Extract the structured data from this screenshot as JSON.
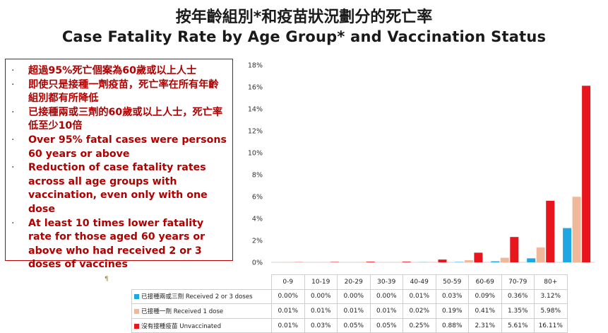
{
  "title_zh": "按年齡組別*和疫苗狀況劃分的死亡率",
  "title_en": "Case Fatality Rate by Age Group* and Vaccination Status",
  "bullets": [
    {
      "lang": "zh",
      "text": "超過95%死亡個案為60歲或以上人士"
    },
    {
      "lang": "zh",
      "text": "即使只是接種一劑疫苗，死亡率在所有年齡組別都有所降低"
    },
    {
      "lang": "zh",
      "text": "已接種兩或三劑的60歲或以上人士，死亡率低至少10倍"
    },
    {
      "lang": "en",
      "text": "Over 95% fatal cases were persons 60 years or above"
    },
    {
      "lang": "en",
      "text": "Reduction of case fatality rates across all age groups with vaccination, even only with one dose"
    },
    {
      "lang": "en",
      "text": "At least 10 times lower fatality rate for those aged 60 years or above who had received 2 or 3 doses of vaccines"
    }
  ],
  "bullet_symbol": "·",
  "stray_mark": "¶",
  "colors": {
    "two_three_doses": "#1ea7e1",
    "one_dose": "#f0b89a",
    "unvaccinated": "#e8151d",
    "border": "#c00000"
  },
  "chart_data": {
    "type": "bar",
    "categories": [
      "0-9",
      "10-19",
      "20-29",
      "30-39",
      "40-49",
      "50-59",
      "60-69",
      "70-79",
      "80+"
    ],
    "ylim": [
      0,
      18
    ],
    "yticks": [
      "0%",
      "2%",
      "4%",
      "6%",
      "8%",
      "10%",
      "12%",
      "14%",
      "16%",
      "18%"
    ],
    "series": [
      {
        "name": "已接種兩或三劑 Received 2 or 3 doses",
        "color": "#1ea7e1",
        "values": [
          0.0,
          0.0,
          0.0,
          0.0,
          0.01,
          0.03,
          0.09,
          0.36,
          3.12
        ],
        "labels": [
          "0.00%",
          "0.00%",
          "0.00%",
          "0.00%",
          "0.01%",
          "0.03%",
          "0.09%",
          "0.36%",
          "3.12%"
        ]
      },
      {
        "name": "已接種一劑 Received 1 dose",
        "color": "#f0b89a",
        "values": [
          0.01,
          0.01,
          0.01,
          0.01,
          0.02,
          0.19,
          0.41,
          1.35,
          5.98
        ],
        "labels": [
          "0.01%",
          "0.01%",
          "0.01%",
          "0.01%",
          "0.02%",
          "0.19%",
          "0.41%",
          "1.35%",
          "5.98%"
        ]
      },
      {
        "name": "沒有接種疫苗 Unvaccinated",
        "color": "#e8151d",
        "values": [
          0.01,
          0.03,
          0.05,
          0.05,
          0.25,
          0.88,
          2.31,
          5.61,
          16.11
        ],
        "labels": [
          "0.01%",
          "0.03%",
          "0.05%",
          "0.05%",
          "0.25%",
          "0.88%",
          "2.31%",
          "5.61%",
          "16.11%"
        ]
      }
    ],
    "grid": false,
    "legend": "data-table"
  }
}
